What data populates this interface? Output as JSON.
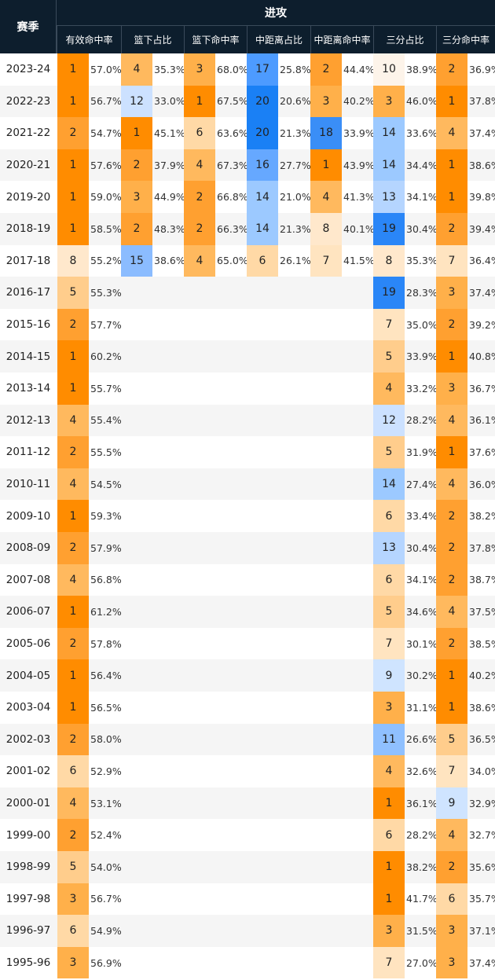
{
  "header": {
    "season_label": "赛季",
    "group_label": "进攻",
    "columns": [
      "有效命中率",
      "篮下占比",
      "篮下命中率",
      "中距离占比",
      "中距离命中率",
      "三分占比",
      "三分命中率"
    ]
  },
  "colors": {
    "header_bg": "#0d1e2d",
    "rank_1": "#ff8c00",
    "rank_low_blue": "#1a80f5"
  },
  "rows": [
    {
      "season": "2023-24",
      "efg": [
        1,
        "57.0%"
      ],
      "rim_freq": [
        4,
        "35.3%"
      ],
      "rim_fg": [
        3,
        "68.0%"
      ],
      "mid_freq": [
        17,
        "25.8%"
      ],
      "mid_fg": [
        2,
        "44.4%"
      ],
      "three_freq": [
        10,
        "38.9%"
      ],
      "three_fg": [
        2,
        "36.9%"
      ]
    },
    {
      "season": "2022-23",
      "efg": [
        1,
        "56.7%"
      ],
      "rim_freq": [
        12,
        "33.0%"
      ],
      "rim_fg": [
        1,
        "67.5%"
      ],
      "mid_freq": [
        20,
        "20.6%"
      ],
      "mid_fg": [
        3,
        "40.2%"
      ],
      "three_freq": [
        3,
        "46.0%"
      ],
      "three_fg": [
        1,
        "37.8%"
      ]
    },
    {
      "season": "2021-22",
      "efg": [
        2,
        "54.7%"
      ],
      "rim_freq": [
        1,
        "45.1%"
      ],
      "rim_fg": [
        6,
        "63.6%"
      ],
      "mid_freq": [
        20,
        "21.3%"
      ],
      "mid_fg": [
        18,
        "33.9%"
      ],
      "three_freq": [
        14,
        "33.6%"
      ],
      "three_fg": [
        4,
        "37.4%"
      ]
    },
    {
      "season": "2020-21",
      "efg": [
        1,
        "57.6%"
      ],
      "rim_freq": [
        2,
        "37.9%"
      ],
      "rim_fg": [
        4,
        "67.3%"
      ],
      "mid_freq": [
        16,
        "27.7%"
      ],
      "mid_fg": [
        1,
        "43.9%"
      ],
      "three_freq": [
        14,
        "34.4%"
      ],
      "three_fg": [
        1,
        "38.6%"
      ]
    },
    {
      "season": "2019-20",
      "efg": [
        1,
        "59.0%"
      ],
      "rim_freq": [
        3,
        "44.9%"
      ],
      "rim_fg": [
        2,
        "66.8%"
      ],
      "mid_freq": [
        14,
        "21.0%"
      ],
      "mid_fg": [
        4,
        "41.3%"
      ],
      "three_freq": [
        13,
        "34.1%"
      ],
      "three_fg": [
        1,
        "39.8%"
      ]
    },
    {
      "season": "2018-19",
      "efg": [
        1,
        "58.5%"
      ],
      "rim_freq": [
        2,
        "48.3%"
      ],
      "rim_fg": [
        2,
        "66.3%"
      ],
      "mid_freq": [
        14,
        "21.3%"
      ],
      "mid_fg": [
        8,
        "40.1%"
      ],
      "three_freq": [
        19,
        "30.4%"
      ],
      "three_fg": [
        2,
        "39.4%"
      ]
    },
    {
      "season": "2017-18",
      "efg": [
        8,
        "55.2%"
      ],
      "rim_freq": [
        15,
        "38.6%"
      ],
      "rim_fg": [
        4,
        "65.0%"
      ],
      "mid_freq": [
        6,
        "26.1%"
      ],
      "mid_fg": [
        7,
        "41.5%"
      ],
      "three_freq": [
        8,
        "35.3%"
      ],
      "three_fg": [
        7,
        "36.4%"
      ]
    },
    {
      "season": "2016-17",
      "efg": [
        5,
        "55.3%"
      ],
      "three_freq": [
        19,
        "28.3%"
      ],
      "three_fg": [
        3,
        "37.4%"
      ]
    },
    {
      "season": "2015-16",
      "efg": [
        2,
        "57.7%"
      ],
      "three_freq": [
        7,
        "35.0%"
      ],
      "three_fg": [
        2,
        "39.2%"
      ]
    },
    {
      "season": "2014-15",
      "efg": [
        1,
        "60.2%"
      ],
      "three_freq": [
        5,
        "33.9%"
      ],
      "three_fg": [
        1,
        "40.8%"
      ]
    },
    {
      "season": "2013-14",
      "efg": [
        1,
        "55.7%"
      ],
      "three_freq": [
        4,
        "33.2%"
      ],
      "three_fg": [
        3,
        "36.7%"
      ]
    },
    {
      "season": "2012-13",
      "efg": [
        4,
        "55.4%"
      ],
      "three_freq": [
        12,
        "28.2%"
      ],
      "three_fg": [
        4,
        "36.1%"
      ]
    },
    {
      "season": "2011-12",
      "efg": [
        2,
        "55.5%"
      ],
      "three_freq": [
        5,
        "31.9%"
      ],
      "three_fg": [
        1,
        "37.6%"
      ]
    },
    {
      "season": "2010-11",
      "efg": [
        4,
        "54.5%"
      ],
      "three_freq": [
        14,
        "27.4%"
      ],
      "three_fg": [
        4,
        "36.0%"
      ]
    },
    {
      "season": "2009-10",
      "efg": [
        1,
        "59.3%"
      ],
      "three_freq": [
        6,
        "33.4%"
      ],
      "three_fg": [
        2,
        "38.2%"
      ]
    },
    {
      "season": "2008-09",
      "efg": [
        2,
        "57.9%"
      ],
      "three_freq": [
        13,
        "30.4%"
      ],
      "three_fg": [
        2,
        "37.8%"
      ]
    },
    {
      "season": "2007-08",
      "efg": [
        4,
        "56.8%"
      ],
      "three_freq": [
        6,
        "34.1%"
      ],
      "three_fg": [
        2,
        "38.7%"
      ]
    },
    {
      "season": "2006-07",
      "efg": [
        1,
        "61.2%"
      ],
      "three_freq": [
        5,
        "34.6%"
      ],
      "three_fg": [
        4,
        "37.5%"
      ]
    },
    {
      "season": "2005-06",
      "efg": [
        2,
        "57.8%"
      ],
      "three_freq": [
        7,
        "30.1%"
      ],
      "three_fg": [
        2,
        "38.5%"
      ]
    },
    {
      "season": "2004-05",
      "efg": [
        1,
        "56.4%"
      ],
      "three_freq": [
        9,
        "30.2%"
      ],
      "three_fg": [
        1,
        "40.2%"
      ]
    },
    {
      "season": "2003-04",
      "efg": [
        1,
        "56.5%"
      ],
      "three_freq": [
        3,
        "31.1%"
      ],
      "three_fg": [
        1,
        "38.6%"
      ]
    },
    {
      "season": "2002-03",
      "efg": [
        2,
        "58.0%"
      ],
      "three_freq": [
        11,
        "26.6%"
      ],
      "three_fg": [
        5,
        "36.5%"
      ]
    },
    {
      "season": "2001-02",
      "efg": [
        6,
        "52.9%"
      ],
      "three_freq": [
        4,
        "32.6%"
      ],
      "three_fg": [
        7,
        "34.0%"
      ]
    },
    {
      "season": "2000-01",
      "efg": [
        4,
        "53.1%"
      ],
      "three_freq": [
        1,
        "36.1%"
      ],
      "three_fg": [
        9,
        "32.9%"
      ]
    },
    {
      "season": "1999-00",
      "efg": [
        2,
        "52.4%"
      ],
      "three_freq": [
        6,
        "28.2%"
      ],
      "three_fg": [
        4,
        "32.7%"
      ]
    },
    {
      "season": "1998-99",
      "efg": [
        5,
        "54.0%"
      ],
      "three_freq": [
        1,
        "38.2%"
      ],
      "three_fg": [
        2,
        "35.6%"
      ]
    },
    {
      "season": "1997-98",
      "efg": [
        3,
        "56.7%"
      ],
      "three_freq": [
        1,
        "41.7%"
      ],
      "three_fg": [
        6,
        "35.7%"
      ]
    },
    {
      "season": "1996-97",
      "efg": [
        6,
        "54.9%"
      ],
      "three_freq": [
        3,
        "31.5%"
      ],
      "three_fg": [
        3,
        "37.1%"
      ]
    },
    {
      "season": "1995-96",
      "efg": [
        3,
        "56.9%"
      ],
      "three_freq": [
        7,
        "27.0%"
      ],
      "three_fg": [
        3,
        "37.4%"
      ]
    }
  ]
}
